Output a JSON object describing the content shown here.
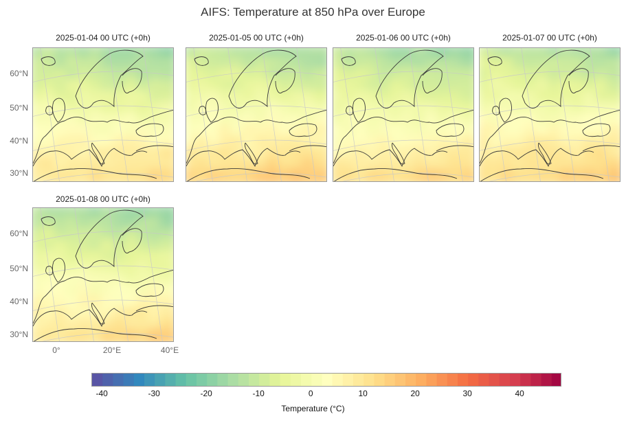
{
  "title": "AIFS: Temperature at 850 hPa over Europe",
  "panels": [
    {
      "title": "2025-01-04 00 UTC (+0h)",
      "scheme": "a"
    },
    {
      "title": "2025-01-05 00 UTC (+0h)",
      "scheme": "b"
    },
    {
      "title": "2025-01-06 00 UTC (+0h)",
      "scheme": "c"
    },
    {
      "title": "2025-01-07 00 UTC (+0h)",
      "scheme": "d"
    },
    {
      "title": "2025-01-08 00 UTC (+0h)",
      "scheme": "e"
    }
  ],
  "lat_labels": [
    "60°N",
    "50°N",
    "40°N",
    "30°N"
  ],
  "lon_labels": [
    "0°",
    "20°E",
    "40°E"
  ],
  "colorbar": {
    "ticks": [
      "-40",
      "-30",
      "-20",
      "-10",
      "0",
      "10",
      "20",
      "30",
      "40"
    ],
    "min": -42,
    "max": 48,
    "label": "Temperature (°C)",
    "colormap": "Spectral_r"
  }
}
